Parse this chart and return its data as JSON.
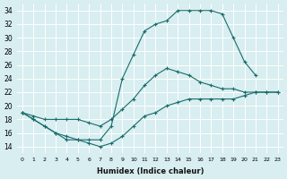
{
  "xlabel": "Humidex (Indice chaleur)",
  "bg_color": "#d8eef0",
  "line_color": "#1a6b6b",
  "xlim": [
    -0.5,
    23.5
  ],
  "ylim": [
    13,
    35
  ],
  "yticks": [
    14,
    16,
    18,
    20,
    22,
    24,
    26,
    28,
    30,
    32,
    34
  ],
  "curve_top_x": [
    0,
    1,
    2,
    3,
    4,
    5,
    6,
    7,
    8,
    9,
    10,
    11,
    12,
    13,
    14,
    15,
    16,
    17,
    18,
    19,
    20,
    21
  ],
  "curve_top_y": [
    19,
    18,
    17,
    16,
    15,
    15,
    15,
    15,
    17,
    24,
    27.5,
    31,
    32,
    32.5,
    34,
    34,
    34,
    34,
    33.5,
    30,
    26.5,
    24.5
  ],
  "curve_mid_x": [
    0,
    1,
    2,
    3,
    4,
    5,
    6,
    7,
    8,
    9,
    10,
    11,
    12,
    13,
    14,
    15,
    16,
    17,
    18,
    19,
    20,
    21,
    22,
    23
  ],
  "curve_mid_y": [
    19,
    18.5,
    18,
    18,
    18,
    18,
    17.5,
    17,
    18,
    19.5,
    21,
    23,
    24.5,
    25.5,
    25,
    24.5,
    23.5,
    23,
    22.5,
    22.5,
    22,
    22,
    22,
    22
  ],
  "curve_bot_x": [
    0,
    1,
    2,
    3,
    4,
    5,
    6,
    7,
    8,
    9,
    10,
    11,
    12,
    13,
    14,
    15,
    16,
    17,
    18,
    19,
    20,
    21,
    22,
    23
  ],
  "curve_bot_y": [
    19,
    18,
    17,
    16,
    15.5,
    15,
    14.5,
    14,
    14.5,
    15.5,
    17,
    18.5,
    19,
    20,
    20.5,
    21,
    21,
    21,
    21,
    21,
    21.5,
    22,
    22,
    22
  ]
}
